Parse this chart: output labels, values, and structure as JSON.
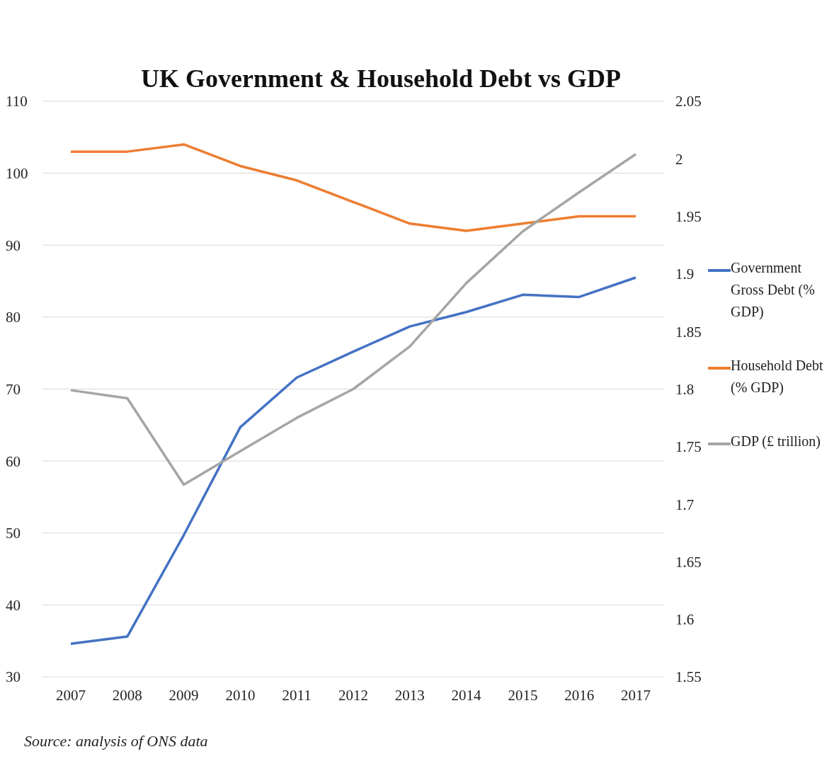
{
  "chart_data": {
    "type": "line",
    "title": "UK Government & Household Debt vs GDP",
    "categories": [
      "2007",
      "2008",
      "2009",
      "2010",
      "2011",
      "2012",
      "2013",
      "2014",
      "2015",
      "2016",
      "2017"
    ],
    "series": [
      {
        "name": "Government Gross Debt (% GDP)",
        "color": "#4472c4",
        "values": [
          34.6,
          35.6,
          49.7,
          64.7,
          71.6,
          75.2,
          78.7,
          80.7,
          83.1,
          82.8,
          85.5
        ]
      },
      {
        "name": "Household Debt (% GDP)",
        "color": "#ed7d31",
        "values": [
          103,
          103,
          104,
          101,
          99,
          96,
          93,
          92,
          93,
          94,
          94
        ]
      },
      {
        "name": "GDP (£ trillion)",
        "color": "#a5a5a5",
        "axis": "y2",
        "values": [
          1.799,
          1.792,
          1.717,
          1.746,
          1.775,
          1.8,
          1.837,
          1.892,
          1.937,
          1.971,
          2.004
        ]
      }
    ],
    "ylim": [
      30,
      110
    ],
    "yticks": [
      30,
      40,
      50,
      60,
      70,
      80,
      90,
      100,
      110
    ],
    "y2lim": [
      1.55,
      2.05
    ],
    "y2ticks": [
      1.55,
      1.6,
      1.65,
      1.7,
      1.75,
      1.8,
      1.85,
      1.9,
      1.95,
      2,
      2.05
    ],
    "grid": "y",
    "legend": "right",
    "marker": "none",
    "line_style": "solid",
    "annotations": [
      "Source: analysis of ONS data"
    ]
  }
}
